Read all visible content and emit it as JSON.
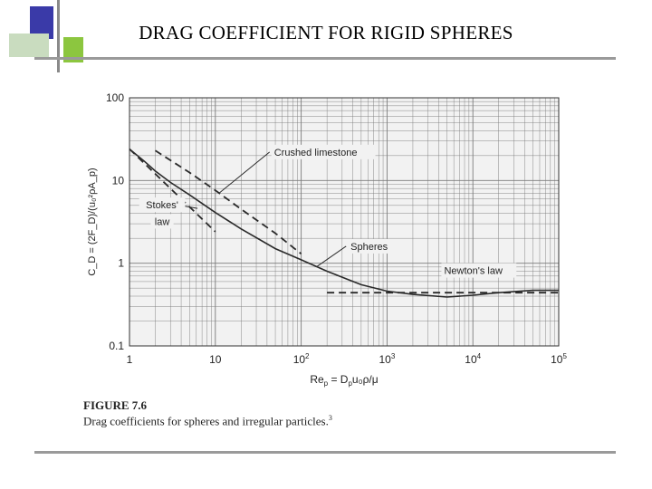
{
  "slide": {
    "title": "DRAG COEFFICIENT FOR RIGID SPHERES",
    "figure_number": "FIGURE 7.6",
    "figure_caption": "Drag coefficients for spheres and irregular particles.",
    "figure_caption_ref": "3",
    "colors": {
      "accent_square": "#3a3aa8",
      "accent_light": "#8cc63f",
      "accent_pale": "#c9dcbf",
      "rule": "#9a9a9a"
    }
  },
  "chart_data": {
    "type": "line",
    "xscale": "log",
    "yscale": "log",
    "xlim": [
      1,
      100000
    ],
    "ylim": [
      0.1,
      100
    ],
    "grid": true,
    "xlabel": {
      "base": "Re",
      "sub": "p",
      "rest": " = D",
      "sub2": "p",
      "tail": "u₀ρ/μ"
    },
    "ylabel": "C_D = (2F_D)/(u₀²ρA_p)",
    "xticks": [
      {
        "value": 1,
        "base": "1",
        "exp": ""
      },
      {
        "value": 10,
        "base": "10",
        "exp": ""
      },
      {
        "value": 100,
        "base": "10",
        "exp": "2"
      },
      {
        "value": 1000,
        "base": "10",
        "exp": "3"
      },
      {
        "value": 10000,
        "base": "10",
        "exp": "4"
      },
      {
        "value": 100000,
        "base": "10",
        "exp": "5"
      }
    ],
    "yticks": [
      {
        "value": 100,
        "label": "100"
      },
      {
        "value": 10,
        "label": "10"
      },
      {
        "value": 1,
        "label": "1"
      },
      {
        "value": 0.1,
        "label": "0.1"
      }
    ],
    "series": [
      {
        "name": "Spheres",
        "style": "solid",
        "x": [
          1,
          1.5,
          2,
          3,
          5,
          10,
          20,
          50,
          100,
          200,
          500,
          1000,
          2000,
          5000,
          10000,
          20000,
          50000,
          100000
        ],
        "y": [
          24,
          17,
          13,
          9.5,
          6.7,
          4.1,
          2.6,
          1.5,
          1.1,
          0.8,
          0.55,
          0.46,
          0.42,
          0.39,
          0.41,
          0.44,
          0.47,
          0.47
        ]
      },
      {
        "name": "Crushed limestone",
        "style": "dashed",
        "x": [
          2,
          5,
          10,
          20,
          50,
          100
        ],
        "y": [
          23,
          12.5,
          7.6,
          4.5,
          2.3,
          1.3
        ]
      },
      {
        "name": "Stokes' law",
        "style": "dashed",
        "x": [
          1,
          10
        ],
        "y": [
          24,
          2.4
        ]
      },
      {
        "name": "Newton's law",
        "style": "dashed",
        "x": [
          200,
          100000
        ],
        "y": [
          0.44,
          0.44
        ]
      }
    ],
    "annotations": [
      {
        "text": "Crushed limestone",
        "x": 45,
        "y": 20,
        "anchor_x": 11,
        "anchor_y": 7,
        "align": "start"
      },
      {
        "text": "Stokes'",
        "x": 2.4,
        "y": 4.6,
        "anchor_x": 6.2,
        "anchor_y": 4.6,
        "align": "middle"
      },
      {
        "text": "law",
        "x": 2.4,
        "y": 2.9,
        "anchor_x": null,
        "anchor_y": null,
        "align": "middle"
      },
      {
        "text": "Spheres",
        "x": 350,
        "y": 1.45,
        "anchor_x": 150,
        "anchor_y": 0.9,
        "align": "start"
      },
      {
        "text": "Newton's law",
        "x": 4300,
        "y": 0.74,
        "anchor_x": null,
        "anchor_y": null,
        "align": "start"
      }
    ]
  }
}
